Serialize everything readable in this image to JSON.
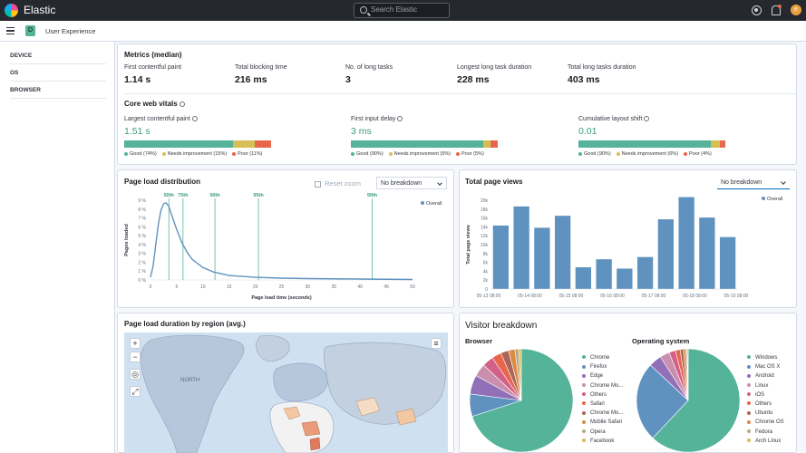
{
  "header": {
    "brand": "Elastic",
    "search_placeholder": "Search Elastic",
    "avatar_letter": "e"
  },
  "breadcrumb": {
    "space_letter": "D",
    "title": "User Experience"
  },
  "sidebar": {
    "filters": [
      "DEVICE",
      "OS",
      "BROWSER"
    ]
  },
  "metrics": {
    "title": "Metrics (median)",
    "items": [
      {
        "label": "First contentful paint",
        "value": "1.14 s"
      },
      {
        "label": "Total blocking time",
        "value": "216 ms"
      },
      {
        "label": "No. of long tasks",
        "value": "3"
      },
      {
        "label": "Longest long task duration",
        "value": "228 ms"
      },
      {
        "label": "Total long tasks duration",
        "value": "403 ms"
      }
    ]
  },
  "core_web_vitals": {
    "title": "Core web vitals",
    "colors": {
      "good": "#54b399",
      "needs": "#d6bf57",
      "poor": "#e7664c"
    },
    "items": [
      {
        "label": "Largest contentful paint",
        "value": "1.51 s",
        "good": 74,
        "needs": 15,
        "poor": 11,
        "legend": [
          "Good (74%)",
          "Needs improvement (15%)",
          "Poor (11%)"
        ]
      },
      {
        "label": "First input delay",
        "value": "3 ms",
        "good": 90,
        "needs": 5,
        "poor": 5,
        "legend": [
          "Good (90%)",
          "Needs improvement (5%)",
          "Poor (5%)"
        ]
      },
      {
        "label": "Cumulative layout shift",
        "value": "0.01",
        "good": 90,
        "needs": 6,
        "poor": 4,
        "legend": [
          "Good (90%)",
          "Needs improvement (6%)",
          "Poor (4%)"
        ]
      }
    ]
  },
  "page_load": {
    "title": "Page load distribution",
    "reset_zoom": "Reset zoom",
    "breakdown": "No breakdown",
    "legend": "Overall",
    "chart_data": {
      "type": "line",
      "xlabel": "Page load time (seconds)",
      "ylabel": "Pages loaded",
      "xlim": [
        0,
        50
      ],
      "ylim": [
        0,
        9
      ],
      "xticks": [
        "0",
        "5",
        "10",
        "15",
        "20",
        "25",
        "30",
        "35",
        "40",
        "45",
        "50"
      ],
      "yticks": [
        "0 %",
        "1 %",
        "2 %",
        "3 %",
        "4 %",
        "5 %",
        "6 %",
        "7 %",
        "8 %",
        "9 %"
      ],
      "x": [
        0,
        0.5,
        1,
        1.5,
        2,
        2.5,
        3,
        3.5,
        4,
        5,
        6,
        7,
        8,
        10,
        12,
        15,
        20,
        25,
        30,
        40,
        50
      ],
      "y": [
        0.3,
        1.6,
        4.0,
        6.3,
        7.9,
        8.6,
        8.7,
        8.3,
        7.4,
        5.7,
        4.2,
        3.1,
        2.3,
        1.4,
        0.9,
        0.5,
        0.3,
        0.2,
        0.15,
        0.1,
        0.05
      ],
      "percentiles": [
        {
          "label": "50th",
          "x": 3.5
        },
        {
          "label": "75th",
          "x": 6.2
        },
        {
          "label": "90th",
          "x": 12.3
        },
        {
          "label": "95th",
          "x": 20.6
        },
        {
          "label": "99th",
          "x": 42.3
        }
      ]
    }
  },
  "page_views": {
    "title": "Total page views",
    "breakdown": "No breakdown",
    "legend": "Overall",
    "chart_data": {
      "type": "bar",
      "ylabel": "Total page views",
      "ylim": [
        0,
        20000
      ],
      "yticks": [
        "0",
        "2k",
        "4k",
        "6k",
        "8k",
        "10k",
        "12k",
        "14k",
        "16k",
        "18k",
        "20k"
      ],
      "xticks": [
        "05-13 08:00",
        "05-14 08:00",
        "05-15 08:00",
        "05-16 08:00",
        "05-17 08:00",
        "05-18 08:00",
        "05-19 08:00"
      ],
      "values": [
        14300,
        18600,
        13800,
        16500,
        4900,
        6700,
        4600,
        7200,
        15700,
        20700,
        16100,
        11700
      ]
    }
  },
  "region": {
    "title": "Page load duration by region (avg.)",
    "map_label": "NORTH"
  },
  "visitor": {
    "title": "Visitor breakdown",
    "browser": {
      "title": "Browser",
      "chart_data": {
        "type": "pie",
        "labels": [
          "Chrome",
          "Firefox",
          "Edge",
          "Chrome Mo...",
          "Others",
          "Safari",
          "Chrome Mo...",
          "Mobile Safari",
          "Opera",
          "Facebook"
        ],
        "values": [
          70,
          7,
          6,
          4,
          3.5,
          3,
          2.5,
          2,
          1.2,
          0.8
        ],
        "colors": [
          "#54b399",
          "#6092c0",
          "#9170b8",
          "#ca8eae",
          "#d36086",
          "#e7664c",
          "#aa6556",
          "#da8b45",
          "#b9a888",
          "#d6bf57"
        ]
      }
    },
    "os": {
      "title": "Operating system",
      "chart_data": {
        "type": "pie",
        "labels": [
          "Windows",
          "Mac OS X",
          "Android",
          "Linux",
          "iOS",
          "Others",
          "Ubuntu",
          "Chrome OS",
          "Fedora",
          "Arch Linux"
        ],
        "values": [
          62,
          25,
          4,
          3,
          2,
          1.5,
          1,
          0.8,
          0.4,
          0.3
        ],
        "colors": [
          "#54b399",
          "#6092c0",
          "#9170b8",
          "#ca8eae",
          "#d36086",
          "#e7664c",
          "#aa6556",
          "#da8b45",
          "#b9a888",
          "#d6bf57"
        ]
      }
    }
  }
}
